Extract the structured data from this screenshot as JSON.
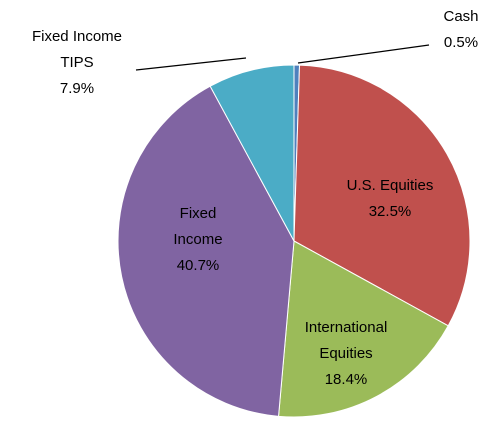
{
  "chart_data": {
    "type": "pie",
    "categories": [
      "Cash",
      "U.S. Equities",
      "International Equities",
      "Fixed Income",
      "Fixed Income TIPS"
    ],
    "values": [
      0.5,
      32.5,
      18.4,
      40.7,
      7.9
    ],
    "value_labels": [
      "0.5%",
      "32.5%",
      "18.4%",
      "40.7%",
      "7.9%"
    ],
    "colors": [
      "#4f81bd",
      "#c0504d",
      "#9bbb59",
      "#8064a2",
      "#4bacc6"
    ]
  }
}
